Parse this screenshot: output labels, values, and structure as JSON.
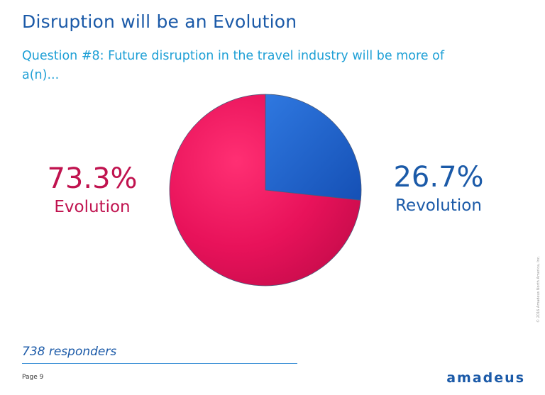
{
  "slide": {
    "title": "Disruption will be an Evolution",
    "subtitle": "Question #8: Future disruption in the travel industry will be more of a(n)...",
    "responders": "738 responders",
    "page_label": "Page 9",
    "logo_text": "amadeus",
    "copyright": "© 2016 Amadeus North America, Inc."
  },
  "labels": {
    "evolution_pct": "73.3%",
    "evolution": "Evolution",
    "revolution_pct": "26.7%",
    "revolution": "Revolution"
  },
  "chart_data": {
    "type": "pie",
    "categories": [
      "Revolution",
      "Evolution"
    ],
    "values": [
      26.7,
      73.3
    ],
    "colors": [
      "#1f5fc8",
      "#e8125a"
    ],
    "start": "12 o'clock, clockwise",
    "legend": "none"
  }
}
